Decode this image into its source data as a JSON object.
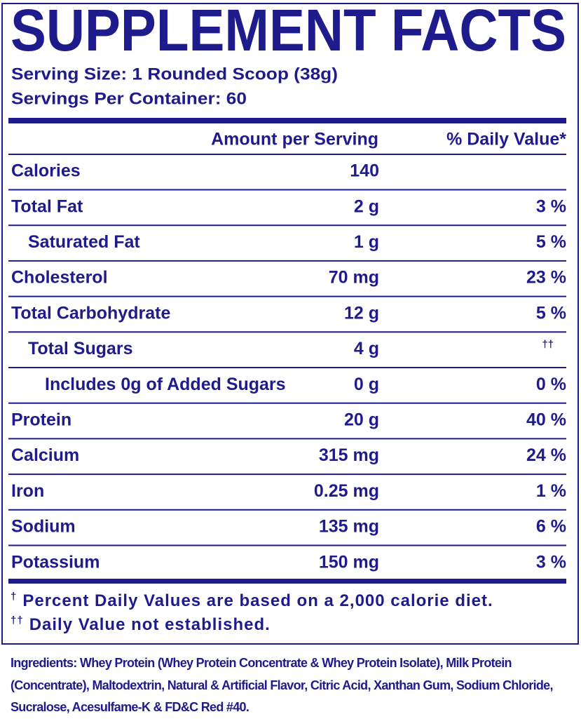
{
  "header": {
    "title": "SUPPLEMENT FACTS",
    "serving_size": "Serving Size: 1 Rounded Scoop (38g)",
    "servings_per_container": "Servings Per Container: 60"
  },
  "table": {
    "columns": [
      "Amount per Serving",
      "% Daily Value*"
    ],
    "rows": [
      {
        "name": "Calories",
        "amount": "140",
        "indent": 0
      },
      {
        "name": "Total Fat",
        "amount": "2 g",
        "dv": "3 %",
        "indent": 0
      },
      {
        "name": "Saturated Fat",
        "amount": "1 g",
        "dv": "5 %",
        "indent": 1
      },
      {
        "name": "Cholesterol",
        "amount": "70 mg",
        "dv": "23 %",
        "indent": 0
      },
      {
        "name": "Total Carbohydrate",
        "amount": "12 g",
        "dv": "5 %",
        "indent": 0
      },
      {
        "name": "Total Sugars",
        "amount": "4 g",
        "dv": "††",
        "indent": 1
      },
      {
        "name": "Includes 0g of Added Sugars",
        "amount": "0 g",
        "dv": "0 %",
        "indent": 2
      },
      {
        "name": "Protein",
        "amount": "20 g",
        "dv": "40 %",
        "indent": 0
      },
      {
        "name": "Calcium",
        "amount": "315 mg",
        "dv": "24 %",
        "indent": 0
      },
      {
        "name": "Iron",
        "amount": "0.25 mg",
        "dv": "1 %",
        "indent": 0
      },
      {
        "name": "Sodium",
        "amount": "135 mg",
        "dv": "6 %",
        "indent": 0
      },
      {
        "name": "Potassium",
        "amount": "150 mg",
        "dv": "3 %",
        "indent": 0
      }
    ]
  },
  "footnotes": [
    {
      "mark": "†",
      "text": "Percent Daily Values are based on a 2,000 calorie diet."
    },
    {
      "mark": "††",
      "text": "Daily Value not established."
    }
  ],
  "ingredients": {
    "label": "Ingredients:",
    "text": "Whey Protein (Whey Protein Concentrate & Whey Protein Isolate), Milk Protein (Concentrate), Maltodextrin, Natural & Artificial Flavor, Citric Acid, Xanthan Gum, Sodium Chloride, Sucralose, Acesulfame-K & FD&C Red #40."
  }
}
